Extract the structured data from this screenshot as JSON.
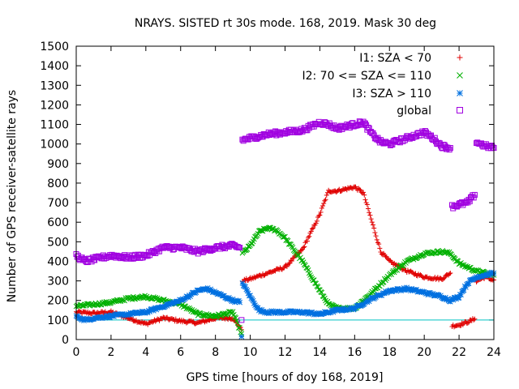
{
  "chart_data": {
    "type": "scatter",
    "title": "NRAYS. SISTED rt 30s mode. 168, 2019. Mask 30 deg",
    "xlabel": "GPS time [hours of doy 168, 2019]",
    "ylabel": "Number of GPS receiver-satellite rays",
    "xlim": [
      0,
      24
    ],
    "ylim": [
      0,
      1500
    ],
    "xticks": [
      "0",
      "2",
      "4",
      "6",
      "8",
      "10",
      "12",
      "14",
      "16",
      "18",
      "20",
      "22",
      "24"
    ],
    "yticks": [
      "0",
      "100",
      "200",
      "300",
      "400",
      "500",
      "600",
      "700",
      "800",
      "900",
      "1000",
      "1100",
      "1200",
      "1300",
      "1400",
      "1500"
    ],
    "reference_line": {
      "y": 100,
      "color": "#00c0c0"
    },
    "legend_position": "top-right",
    "series": [
      {
        "name": "I1: SZA < 70",
        "marker": "+",
        "color": "#e00000",
        "points": [
          [
            0,
            140
          ],
          [
            1,
            135
          ],
          [
            2,
            140
          ],
          [
            3,
            110
          ],
          [
            4,
            80
          ],
          [
            5,
            110
          ],
          [
            6,
            95
          ],
          [
            7,
            85
          ],
          [
            8,
            110
          ],
          [
            9,
            110
          ],
          [
            9.5,
            50
          ],
          [
            9.55,
            300
          ],
          [
            10,
            310
          ],
          [
            11,
            340
          ],
          [
            12,
            370
          ],
          [
            13,
            460
          ],
          [
            14,
            640
          ],
          [
            14.5,
            760
          ],
          [
            15,
            760
          ],
          [
            15.5,
            770
          ],
          [
            16,
            780
          ],
          [
            16.5,
            750
          ],
          [
            17,
            600
          ],
          [
            17.5,
            450
          ],
          [
            18,
            400
          ],
          [
            19,
            350
          ],
          [
            20,
            320
          ],
          [
            21,
            310
          ],
          [
            21.5,
            340
          ],
          [
            21.6,
            70
          ],
          [
            22,
            75
          ],
          [
            22.5,
            90
          ],
          [
            22.9,
            105
          ],
          [
            23,
            300
          ],
          [
            23.5,
            320
          ],
          [
            24,
            305
          ]
        ]
      },
      {
        "name": "I2: 70 <= SZA <= 110",
        "marker": "x",
        "color": "#00b000",
        "points": [
          [
            0,
            170
          ],
          [
            1,
            180
          ],
          [
            2,
            190
          ],
          [
            3,
            210
          ],
          [
            4,
            220
          ],
          [
            5,
            200
          ],
          [
            6,
            180
          ],
          [
            7,
            130
          ],
          [
            8,
            120
          ],
          [
            9,
            140
          ],
          [
            9.5,
            30
          ],
          [
            9.55,
            440
          ],
          [
            10,
            480
          ],
          [
            10.5,
            550
          ],
          [
            11,
            570
          ],
          [
            11.5,
            560
          ],
          [
            12,
            520
          ],
          [
            13,
            400
          ],
          [
            14,
            250
          ],
          [
            14.5,
            180
          ],
          [
            15,
            160
          ],
          [
            16,
            160
          ],
          [
            17,
            240
          ],
          [
            18,
            330
          ],
          [
            19,
            400
          ],
          [
            20,
            440
          ],
          [
            21,
            450
          ],
          [
            21.5,
            440
          ],
          [
            22,
            390
          ],
          [
            23,
            350
          ],
          [
            24,
            330
          ]
        ]
      },
      {
        "name": "I3: SZA > 110",
        "marker": "*",
        "color": "#0070e0",
        "points": [
          [
            0,
            120
          ],
          [
            0.5,
            100
          ],
          [
            1,
            110
          ],
          [
            2,
            120
          ],
          [
            3,
            130
          ],
          [
            4,
            140
          ],
          [
            5,
            170
          ],
          [
            6,
            200
          ],
          [
            7,
            250
          ],
          [
            7.5,
            260
          ],
          [
            8,
            240
          ],
          [
            9,
            200
          ],
          [
            9.4,
            190
          ],
          [
            9.5,
            15
          ],
          [
            9.55,
            290
          ],
          [
            10,
            220
          ],
          [
            10.5,
            150
          ],
          [
            11,
            140
          ],
          [
            12,
            140
          ],
          [
            13,
            140
          ],
          [
            14,
            130
          ],
          [
            15,
            150
          ],
          [
            16,
            160
          ],
          [
            17,
            210
          ],
          [
            18,
            250
          ],
          [
            19,
            260
          ],
          [
            20,
            240
          ],
          [
            21,
            220
          ],
          [
            21.5,
            200
          ],
          [
            22,
            220
          ],
          [
            22.5,
            290
          ],
          [
            23,
            320
          ],
          [
            24,
            340
          ]
        ]
      },
      {
        "name": "global",
        "marker": "square",
        "color": "#a000e0",
        "points": [
          [
            0,
            430
          ],
          [
            0.5,
            400
          ],
          [
            1,
            410
          ],
          [
            2,
            430
          ],
          [
            3,
            420
          ],
          [
            4,
            430
          ],
          [
            5,
            470
          ],
          [
            6,
            470
          ],
          [
            7,
            450
          ],
          [
            8,
            470
          ],
          [
            9,
            480
          ],
          [
            9.4,
            470
          ],
          [
            9.5,
            100
          ],
          [
            9.55,
            1020
          ],
          [
            10,
            1030
          ],
          [
            11,
            1050
          ],
          [
            12,
            1060
          ],
          [
            13,
            1070
          ],
          [
            14,
            1110
          ],
          [
            14.5,
            1100
          ],
          [
            15,
            1080
          ],
          [
            16,
            1100
          ],
          [
            16.5,
            1110
          ],
          [
            17,
            1050
          ],
          [
            17.5,
            1010
          ],
          [
            18,
            1000
          ],
          [
            19,
            1030
          ],
          [
            20,
            1060
          ],
          [
            20.5,
            1030
          ],
          [
            21,
            990
          ],
          [
            21.5,
            980
          ],
          [
            21.6,
            680
          ],
          [
            22,
            690
          ],
          [
            22.5,
            700
          ],
          [
            22.9,
            740
          ],
          [
            23,
            1010
          ],
          [
            23.5,
            990
          ],
          [
            24,
            980
          ]
        ]
      }
    ]
  }
}
